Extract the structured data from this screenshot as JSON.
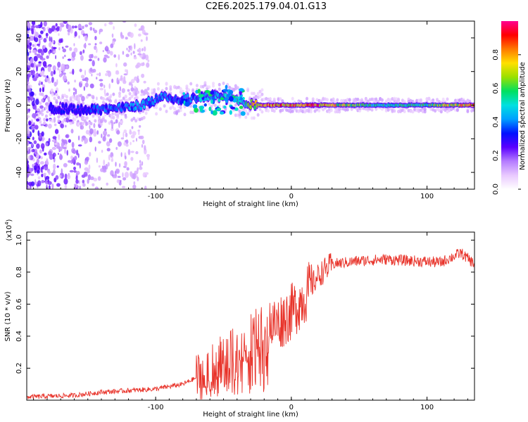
{
  "figure_title": "C2E6.2025.179.04.01.G13",
  "chart_data": [
    {
      "type": "heatmap",
      "xlabel": "Height of straight line (km)",
      "ylabel": "Frequency (Hz)",
      "xlim": [
        -195,
        135
      ],
      "ylim": [
        -50,
        50
      ],
      "x_ticks": [
        -100,
        0,
        100
      ],
      "y_ticks": [
        -40,
        -20,
        0,
        20,
        40
      ],
      "colorbar": {
        "label": "Normalized spectral amplitude",
        "range": [
          0,
          1
        ],
        "ticks": [
          "0.0",
          "0.2",
          "0.4",
          "0.6",
          "0.8"
        ],
        "colors": [
          "#ffffff",
          "#e9c9ff",
          "#b47bff",
          "#5a00ff",
          "#0011ff",
          "#00a0ff",
          "#00e0e0",
          "#00e060",
          "#9ae000",
          "#ffe000",
          "#ff7a00",
          "#ff0000",
          "#ff0090"
        ]
      },
      "ridge": {
        "description_points_x": [
          -170,
          -150,
          -130,
          -110,
          -95,
          -80,
          -60,
          -45,
          -35,
          -20,
          0,
          20,
          60,
          100,
          135
        ],
        "center_freq": [
          -2,
          -3,
          -2,
          0,
          5,
          3,
          6,
          4,
          1,
          0,
          0,
          0,
          0,
          0,
          0
        ],
        "peak_amplitude": [
          0.3,
          0.35,
          0.4,
          0.45,
          0.45,
          0.4,
          0.45,
          0.5,
          0.6,
          0.9,
          0.85,
          0.9,
          0.55,
          0.6,
          0.85
        ]
      }
    },
    {
      "type": "line",
      "xlabel": "Height of straight line (km)",
      "ylabel": "SNR (10 * v/v)",
      "y_multiplier": "(x10",
      "y_multiplier_exp": "4",
      "y_multiplier_close": ")",
      "xlim": [
        -195,
        135
      ],
      "ylim": [
        0,
        1.05
      ],
      "x_ticks": [
        -100,
        0,
        100
      ],
      "y_ticks": [
        "0.2",
        "0.4",
        "0.6",
        "0.8",
        "1.0"
      ],
      "color": "#e8332a",
      "envelope": {
        "x": [
          -195,
          -160,
          -140,
          -120,
          -100,
          -80,
          -60,
          -50,
          -40,
          -30,
          -20,
          -10,
          0,
          10,
          20,
          30,
          50,
          70,
          90,
          110,
          120,
          125,
          135
        ],
        "y": [
          0.02,
          0.03,
          0.05,
          0.06,
          0.07,
          0.1,
          0.18,
          0.26,
          0.3,
          0.4,
          0.45,
          0.48,
          0.55,
          0.65,
          0.78,
          0.85,
          0.87,
          0.88,
          0.87,
          0.86,
          0.9,
          0.92,
          0.85
        ]
      }
    }
  ]
}
